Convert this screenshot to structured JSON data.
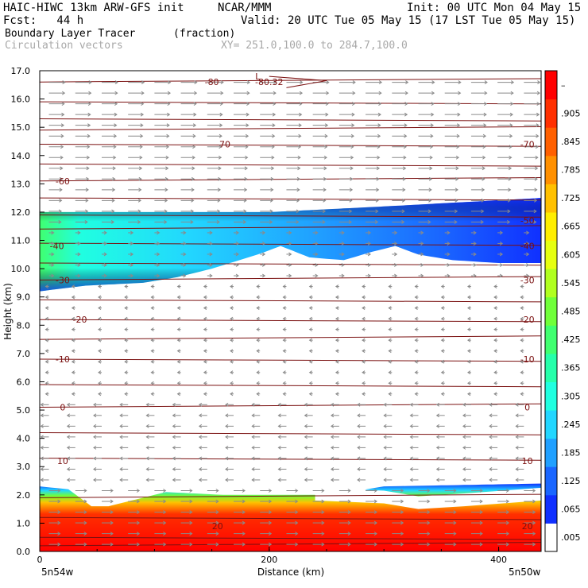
{
  "header": {
    "model": "HAIC-HIWC 13km ARW-GFS init",
    "org": "NCAR/MMM",
    "init": "Init: 00 UTC Mon 04 May 15",
    "fcst": "Fcst:   44 h",
    "valid": "Valid: 20 UTC Tue 05 May 15 (17 LST Tue 05 May 15)"
  },
  "fields": {
    "primary": "Boundary Layer Tracer",
    "primary_units": "(fraction)",
    "secondary": "Circulation vectors",
    "xy": "XY= 251.0,100.0 to 284.7,100.0"
  },
  "colors": {
    "contour": "#7a1010",
    "arrow": "#8a8a8a",
    "frame": "#000000"
  },
  "chart_data": {
    "type": "heatmap",
    "ylabel": "Height (km)",
    "xlabel": "Distance (km)",
    "xlim": [
      0,
      437
    ],
    "ylim": [
      0,
      17
    ],
    "y_ticks": [
      "0.0",
      "1.0",
      "2.0",
      "3.0",
      "4.0",
      "5.0",
      "6.0",
      "7.0",
      "8.0",
      "9.0",
      "10.0",
      "11.0",
      "12.0",
      "13.0",
      "14.0",
      "15.0",
      "16.0",
      "17.0"
    ],
    "x_ticks": [
      "0",
      "200",
      "400"
    ],
    "x_endpoints": [
      "5n54w",
      "5n50w"
    ],
    "colorbar": {
      "labels": [
        ".005",
        ".065",
        ".125",
        ".185",
        ".245",
        ".305",
        ".365",
        ".425",
        ".485",
        ".545",
        ".605",
        ".665",
        ".725",
        ".785",
        ".845",
        ".905",
        "–"
      ],
      "colors": [
        "#ffffff",
        "#1030ff",
        "#1a66ff",
        "#20a0ff",
        "#22d6ff",
        "#20ffe0",
        "#26ffaa",
        "#40ff70",
        "#70ff3a",
        "#b0ff20",
        "#e6ff10",
        "#ffee00",
        "#ffc000",
        "#ff9000",
        "#ff6000",
        "#ff3000",
        "#ff0000"
      ]
    },
    "contour_labels": [
      {
        "text": "-80",
        "x": 150,
        "y": 16.6
      },
      {
        "text": "-80.32",
        "x": 200,
        "y": 16.6
      },
      {
        "text": "L",
        "x": 190,
        "y": 16.8
      },
      {
        "text": "-70",
        "x": 160,
        "y": 14.4
      },
      {
        "text": "-70",
        "x": 425,
        "y": 14.4
      },
      {
        "text": "-60",
        "x": 20,
        "y": 13.1
      },
      {
        "text": "-50",
        "x": 425,
        "y": 11.7
      },
      {
        "text": "-40",
        "x": 15,
        "y": 10.8
      },
      {
        "text": "-40",
        "x": 425,
        "y": 10.8
      },
      {
        "text": "-30",
        "x": 20,
        "y": 9.6
      },
      {
        "text": "-30",
        "x": 425,
        "y": 9.6
      },
      {
        "text": "-20",
        "x": 35,
        "y": 8.2
      },
      {
        "text": "-20",
        "x": 425,
        "y": 8.2
      },
      {
        "text": "-10",
        "x": 20,
        "y": 6.8
      },
      {
        "text": "-10",
        "x": 425,
        "y": 6.8
      },
      {
        "text": "0",
        "x": 20,
        "y": 5.1
      },
      {
        "text": "0",
        "x": 425,
        "y": 5.1
      },
      {
        "text": "10",
        "x": 20,
        "y": 3.2
      },
      {
        "text": "10",
        "x": 425,
        "y": 3.2
      },
      {
        "text": "20",
        "x": 155,
        "y": 0.9
      },
      {
        "text": "20",
        "x": 425,
        "y": 0.9
      }
    ],
    "level_lines_km": [
      0.2,
      0.5,
      1.2,
      1.9,
      3.3,
      4.2,
      5.1,
      5.9,
      6.8,
      7.5,
      8.2,
      8.9,
      9.6,
      10.2,
      10.9,
      11.4,
      11.9,
      12.5,
      13.1,
      13.7,
      14.4,
      14.9,
      15.3,
      15.9,
      16.6
    ],
    "upper_layer_top_km": [
      [
        0,
        12.0
      ],
      [
        100,
        12.0
      ],
      [
        200,
        12.0
      ],
      [
        300,
        12.2
      ],
      [
        437,
        12.5
      ]
    ],
    "upper_layer_bottom_km": [
      [
        0,
        9.2
      ],
      [
        40,
        9.4
      ],
      [
        90,
        9.5
      ],
      [
        120,
        9.7
      ],
      [
        150,
        10.0
      ],
      [
        190,
        10.5
      ],
      [
        210,
        10.8
      ],
      [
        235,
        10.4
      ],
      [
        265,
        10.3
      ],
      [
        290,
        10.6
      ],
      [
        310,
        10.8
      ],
      [
        330,
        10.5
      ],
      [
        360,
        10.3
      ],
      [
        400,
        10.2
      ],
      [
        437,
        10.2
      ]
    ],
    "bl_top_km": [
      [
        0,
        2.3
      ],
      [
        25,
        2.2
      ],
      [
        35,
        1.9
      ],
      [
        45,
        1.6
      ],
      [
        60,
        1.6
      ],
      [
        80,
        1.8
      ],
      [
        110,
        2.1
      ],
      [
        160,
        2.0
      ],
      [
        200,
        2.0
      ],
      [
        250,
        2.0
      ],
      [
        270,
        2.0
      ],
      [
        285,
        2.2
      ],
      [
        300,
        2.3
      ],
      [
        437,
        2.4
      ]
    ],
    "bl_gap": [
      [
        240,
        1.8
      ],
      [
        300,
        1.7
      ],
      [
        330,
        1.5
      ],
      [
        370,
        1.6
      ],
      [
        437,
        1.8
      ]
    ]
  }
}
